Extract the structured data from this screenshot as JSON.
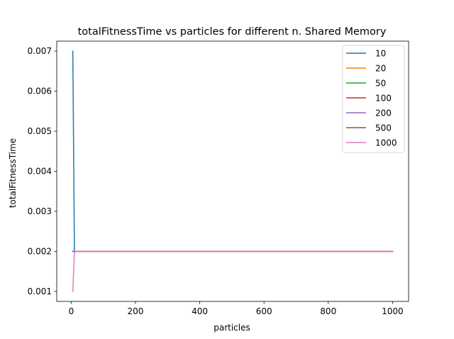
{
  "chart_data": {
    "type": "line",
    "title": "totalFitnessTime vs particles for different n. Shared Memory",
    "xlabel": "particles",
    "ylabel": "totalFitnessTime",
    "xlim": [
      -45,
      1050
    ],
    "ylim": [
      0.00075,
      0.00725
    ],
    "x_ticks": [
      0,
      200,
      400,
      600,
      800,
      1000
    ],
    "x_tick_labels": [
      "0",
      "200",
      "400",
      "600",
      "800",
      "1000"
    ],
    "y_ticks": [
      0.001,
      0.002,
      0.003,
      0.004,
      0.005,
      0.006,
      0.007
    ],
    "y_tick_labels": [
      "0.001",
      "0.002",
      "0.003",
      "0.004",
      "0.005",
      "0.006",
      "0.007"
    ],
    "grid": false,
    "legend_position": "top-right",
    "series": [
      {
        "name": "10",
        "color": "#1f77b4",
        "x": [
          5,
          10,
          1000
        ],
        "y": [
          0.007,
          0.002,
          0.002
        ]
      },
      {
        "name": "20",
        "color": "#ff7f0e",
        "x": [
          5,
          10,
          1000
        ],
        "y": [
          0.002,
          0.002,
          0.002
        ]
      },
      {
        "name": "50",
        "color": "#2ca02c",
        "x": [
          5,
          10,
          1000
        ],
        "y": [
          0.002,
          0.002,
          0.002
        ]
      },
      {
        "name": "100",
        "color": "#d62728",
        "x": [
          5,
          10,
          1000
        ],
        "y": [
          0.002,
          0.002,
          0.002
        ]
      },
      {
        "name": "200",
        "color": "#9467bd",
        "x": [
          5,
          10,
          1000
        ],
        "y": [
          0.002,
          0.002,
          0.002
        ]
      },
      {
        "name": "500",
        "color": "#8c564b",
        "x": [
          5,
          10,
          1000
        ],
        "y": [
          0.002,
          0.002,
          0.002
        ]
      },
      {
        "name": "1000",
        "color": "#e377c2",
        "x": [
          5,
          10,
          1000
        ],
        "y": [
          0.001,
          0.002,
          0.002
        ]
      }
    ]
  }
}
